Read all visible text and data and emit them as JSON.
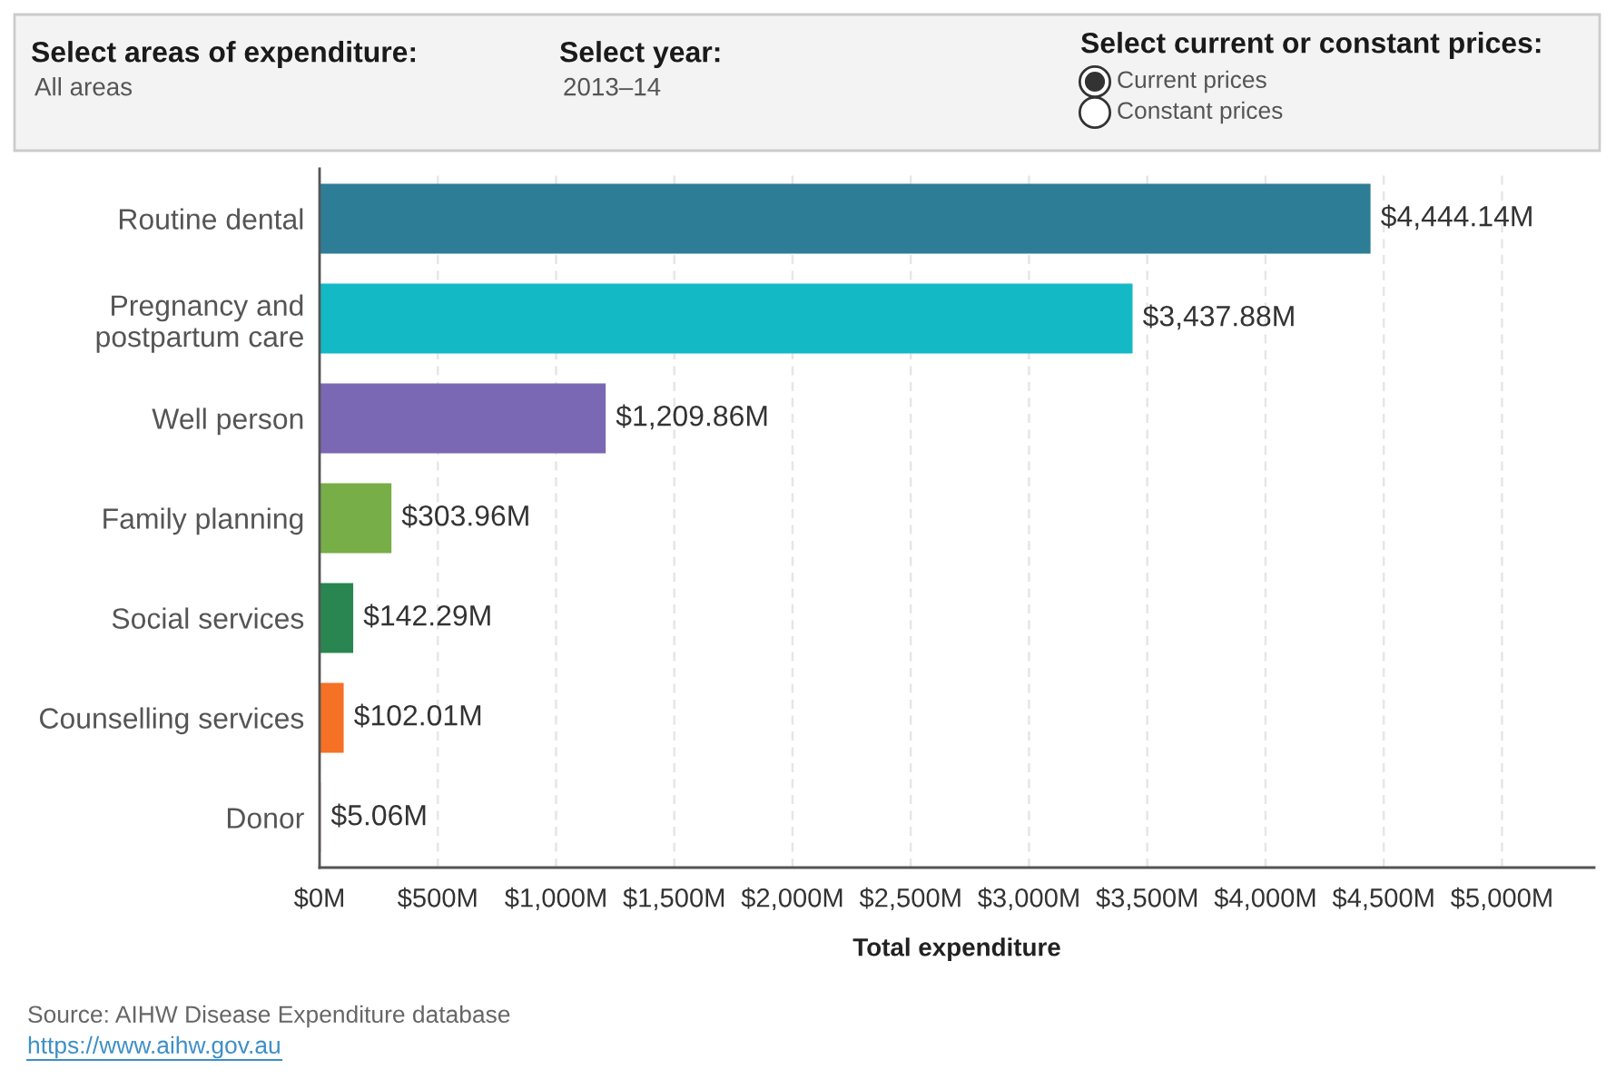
{
  "chart_data": {
    "type": "bar",
    "orientation": "horizontal",
    "categories": [
      "Routine dental",
      "Pregnancy and\npostpartum care",
      "Well person",
      "Family planning",
      "Social services",
      "Counselling services",
      "Donor"
    ],
    "values": [
      4444.14,
      3437.88,
      1209.86,
      303.96,
      142.29,
      102.01,
      5.06
    ],
    "colors": [
      "#2e7d97",
      "#14b9c6",
      "#7b68b5",
      "#77ae47",
      "#2a8650",
      "#f47126",
      "#e377c2"
    ],
    "value_labels": [
      "$4,444.14M",
      "$3,437.88M",
      "$1,209.86M",
      "$303.96M",
      "$142.29M",
      "$102.01M",
      "$5.06M"
    ],
    "xlabel": "Total expenditure",
    "xlim": [
      0,
      5390
    ],
    "xticks": [
      {
        "value": 0,
        "label": "$0M"
      },
      {
        "value": 500,
        "label": "$500M"
      },
      {
        "value": 1000,
        "label": "$1,000M"
      },
      {
        "value": 1500,
        "label": "$1,500M"
      },
      {
        "value": 2000,
        "label": "$2,000M"
      },
      {
        "value": 2500,
        "label": "$2,500M"
      },
      {
        "value": 3000,
        "label": "$3,000M"
      },
      {
        "value": 3500,
        "label": "$3,500M"
      },
      {
        "value": 4000,
        "label": "$4,000M"
      },
      {
        "value": 4500,
        "label": "$4,500M"
      },
      {
        "value": 5000,
        "label": "$5,000M"
      }
    ],
    "grid": "x",
    "annotations": [
      "Select areas of expenditure:",
      "All areas",
      "Select year:",
      "2013–14",
      "Select current or constant prices:",
      "Current prices",
      "Constant prices",
      "Source: AIHW Disease Expenditure database",
      "https://www.aihw.gov.au"
    ]
  }
}
